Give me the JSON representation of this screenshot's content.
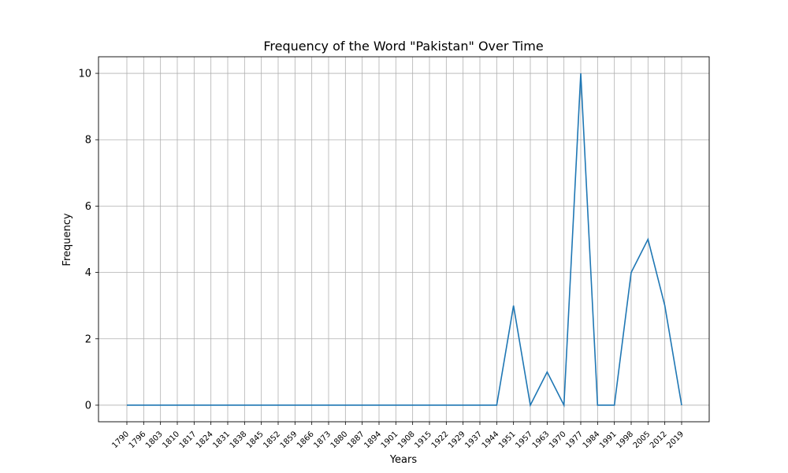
{
  "chart_data": {
    "type": "line",
    "title": "Frequency of the Word \"Pakistan\" Over Time",
    "xlabel": "Years",
    "ylabel": "Frequency",
    "categories": [
      "1790",
      "1796",
      "1803",
      "1810",
      "1817",
      "1824",
      "1831",
      "1838",
      "1845",
      "1852",
      "1859",
      "1866",
      "1873",
      "1880",
      "1887",
      "1894",
      "1901",
      "1908",
      "1915",
      "1922",
      "1929",
      "1937",
      "1944",
      "1951",
      "1957",
      "1963",
      "1970",
      "1977",
      "1984",
      "1991",
      "1998",
      "2005",
      "2012",
      "2019"
    ],
    "series": [
      {
        "values": [
          0,
          0,
          0,
          0,
          0,
          0,
          0,
          0,
          0,
          0,
          0,
          0,
          0,
          0,
          0,
          0,
          0,
          0,
          0,
          0,
          0,
          0,
          0,
          3,
          0,
          1,
          0,
          10,
          0,
          0,
          4,
          5,
          3,
          0
        ],
        "color": "#1f77b4"
      }
    ],
    "ylim": [
      -0.5,
      10.5
    ],
    "yticks": [
      0,
      2,
      4,
      6,
      8,
      10
    ],
    "grid": true,
    "legend": "none"
  }
}
